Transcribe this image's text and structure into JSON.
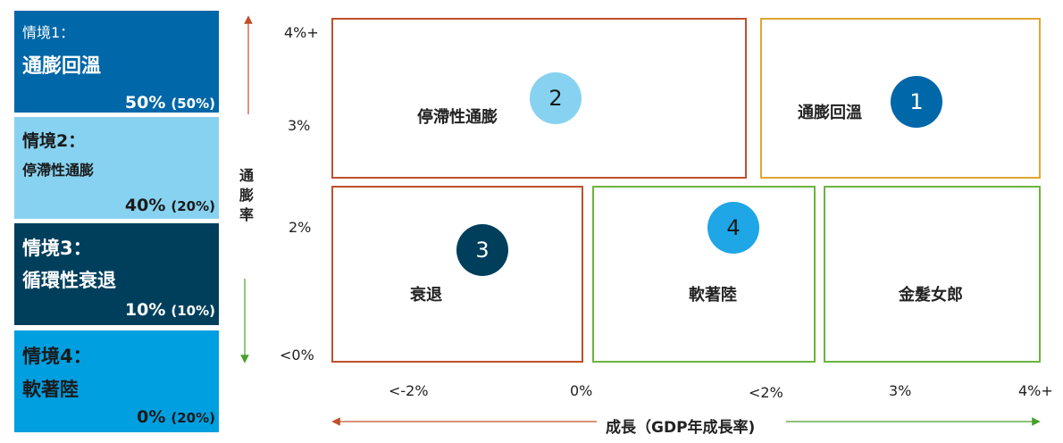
{
  "scenarios": [
    {
      "heading": "情境1：",
      "name": "通膨回溫",
      "pct_main": "50%",
      "pct_sub": "(50%)"
    },
    {
      "heading": "情境2：",
      "name": "停滯性通膨",
      "pct_main": "40%",
      "pct_sub": "(20%)"
    },
    {
      "heading": "情境3：",
      "name": "循環性衰退",
      "pct_main": "10%",
      "pct_sub": "(10%)"
    },
    {
      "heading": "情境4：",
      "name": "軟著陸",
      "pct_main": "0%",
      "pct_sub": "(20%)"
    }
  ],
  "y_axis": {
    "label": "通膨率",
    "ticks": [
      "4%+",
      "3%",
      "2%",
      "<0%"
    ]
  },
  "x_axis": {
    "label": "成長（GDP年成長率)",
    "ticks": [
      "<-2%",
      "0%",
      "<2%",
      "3%",
      "4%+"
    ]
  },
  "quadrants": [
    {
      "label": "停滯性通膨",
      "number": "2"
    },
    {
      "label": "通膨回溫",
      "number": "1"
    },
    {
      "label": "衰退",
      "number": "3"
    },
    {
      "label": "軟著陸",
      "number": "4"
    },
    {
      "label": "金髮女郎"
    }
  ],
  "colors": {
    "scenario1": "#0067a8",
    "scenario2": "#87d2f0",
    "scenario3": "#003f5c",
    "scenario4": "#009fe0",
    "border_orange": "#c0502a",
    "border_gold": "#e0a630",
    "border_green": "#6db33f",
    "axis_up": "#c0502a",
    "axis_down": "#4a9e2a"
  }
}
